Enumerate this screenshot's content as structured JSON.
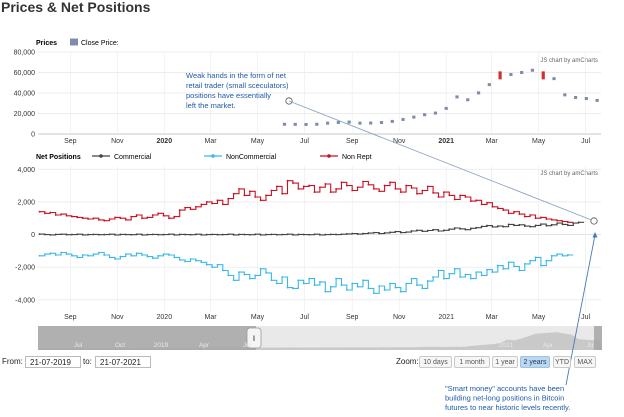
{
  "page": {
    "title": "Prices & Net Positions"
  },
  "chart_data": [
    {
      "type": "scatter",
      "panel": "Prices",
      "legend": [
        "Close Price:"
      ],
      "credit": "JS chart by amCharts",
      "y_ticks": [
        "80,000",
        "60,000",
        "40,000",
        "20,000",
        "0"
      ],
      "ylim": [
        0,
        80000
      ],
      "x_tick_labels": [
        "Sep",
        "Nov",
        "2020",
        "Mar",
        "May",
        "Jul",
        "Sep",
        "Nov",
        "2021",
        "Mar",
        "May",
        "Jul"
      ],
      "x_tick_dates": [
        "2019-09-01",
        "2019-11-01",
        "2020-01-01",
        "2020-03-01",
        "2020-05-01",
        "2020-07-01",
        "2020-09-01",
        "2020-11-01",
        "2021-01-01",
        "2021-03-01",
        "2021-05-01",
        "2021-07-01"
      ],
      "bold_ticks": [
        "2020",
        "2021"
      ],
      "x": [
        "2020-06-05",
        "2020-06-19",
        "2020-07-03",
        "2020-07-17",
        "2020-07-31",
        "2020-08-14",
        "2020-08-28",
        "2020-09-11",
        "2020-09-25",
        "2020-10-09",
        "2020-10-23",
        "2020-11-06",
        "2020-11-20",
        "2020-12-04",
        "2020-12-18",
        "2021-01-01",
        "2021-01-15",
        "2021-01-29",
        "2021-02-12",
        "2021-02-26",
        "2021-03-12",
        "2021-03-26",
        "2021-04-09",
        "2021-04-23",
        "2021-05-07",
        "2021-05-21",
        "2021-06-04",
        "2021-06-18",
        "2021-07-02",
        "2021-07-16"
      ],
      "close": [
        9500,
        9400,
        9300,
        9500,
        10600,
        11300,
        11600,
        10600,
        10700,
        11200,
        12300,
        14200,
        16500,
        18800,
        20400,
        25000,
        36200,
        33400,
        40100,
        48200,
        57200,
        58000,
        60000,
        62200,
        57200,
        54000,
        38200,
        35600,
        34600,
        32800
      ],
      "down_weeks": [
        "2021-03-12",
        "2021-05-07"
      ]
    },
    {
      "type": "line",
      "panel": "Net Positions",
      "credit": "JS chart by amCharts",
      "y_ticks": [
        "4,000",
        "2,000",
        "0",
        "-2,000",
        "-4,000"
      ],
      "ylim": [
        -4500,
        4200
      ],
      "x_tick_labels": [
        "Sep",
        "Nov",
        "2020",
        "Mar",
        "May",
        "Jul",
        "Sep",
        "Nov",
        "2021",
        "Mar",
        "May",
        "Jul"
      ],
      "x_tick_dates": [
        "2019-09-01",
        "2019-11-01",
        "2020-01-01",
        "2020-03-01",
        "2020-05-01",
        "2020-07-01",
        "2020-09-01",
        "2020-11-01",
        "2021-01-01",
        "2021-03-01",
        "2021-05-01",
        "2021-07-01"
      ],
      "x_start": "2019-07-23",
      "step_days": 7,
      "series": [
        {
          "name": "Commercial",
          "color": "#444444",
          "values": [
            30,
            0,
            -20,
            10,
            20,
            -10,
            0,
            20,
            -20,
            0,
            10,
            -10,
            0,
            20,
            -20,
            10,
            0,
            -10,
            20,
            -20,
            0,
            10,
            -10,
            0,
            20,
            -20,
            10,
            0,
            -10,
            20,
            -20,
            0,
            10,
            -10,
            0,
            20,
            -20,
            10,
            0,
            -10,
            20,
            -20,
            0,
            10,
            -10,
            0,
            20,
            -20,
            10,
            0,
            -10,
            20,
            -20,
            0,
            10,
            0,
            20,
            40,
            60,
            30,
            60,
            90,
            120,
            60,
            100,
            140,
            180,
            120,
            150,
            220,
            260,
            200,
            250,
            300,
            220,
            260,
            330,
            400,
            350,
            300,
            380,
            420,
            500,
            550,
            470,
            520,
            480,
            620,
            560,
            600,
            520,
            480,
            560,
            640,
            540,
            600,
            700,
            620,
            560,
            700,
            750
          ]
        },
        {
          "name": "NonCommercial",
          "color": "#3ab8e9",
          "values": [
            -1300,
            -1200,
            -1150,
            -1250,
            -1100,
            -1200,
            -1300,
            -1400,
            -1250,
            -1300,
            -1200,
            -1100,
            -1250,
            -1400,
            -1500,
            -1350,
            -1200,
            -1300,
            -1150,
            -1250,
            -1350,
            -1450,
            -1300,
            -1200,
            -1250,
            -1400,
            -1550,
            -1650,
            -1500,
            -1600,
            -1700,
            -1850,
            -2000,
            -1850,
            -2200,
            -2500,
            -2800,
            -2300,
            -2450,
            -2700,
            -2500,
            -2100,
            -2350,
            -2800,
            -3000,
            -2600,
            -3250,
            -3300,
            -2800,
            -3000,
            -2700,
            -3100,
            -2900,
            -3500,
            -3200,
            -2700,
            -3100,
            -3400,
            -3000,
            -3200,
            -2800,
            -3300,
            -3600,
            -3150,
            -3400,
            -3000,
            -3250,
            -3500,
            -3000,
            -2700,
            -3100,
            -3300,
            -2850,
            -2600,
            -2200,
            -2700,
            -2400,
            -2100,
            -2600,
            -2450,
            -2700,
            -2300,
            -2500,
            -2150,
            -2300,
            -1900,
            -2100,
            -1700,
            -1950,
            -2200,
            -1800,
            -1600,
            -1400,
            -1900,
            -1600,
            -1300,
            -1200,
            -1300,
            -1250
          ]
        },
        {
          "name": "Non Rept",
          "color": "#cc1122",
          "values": [
            1400,
            1300,
            1350,
            1200,
            1250,
            1150,
            1100,
            1050,
            1000,
            950,
            1000,
            900,
            850,
            950,
            1050,
            1000,
            900,
            1100,
            1200,
            1000,
            1050,
            1200,
            1300,
            1150,
            1000,
            1100,
            1500,
            1650,
            1550,
            1700,
            1850,
            2000,
            1900,
            2100,
            1850,
            2200,
            2500,
            2800,
            2400,
            2650,
            2300,
            2100,
            2400,
            2700,
            2950,
            2500,
            3300,
            3150,
            2800,
            2950,
            3000,
            2600,
            2900,
            3100,
            2600,
            2800,
            3200,
            3000,
            2700,
            2900,
            3250,
            3050,
            2800,
            2650,
            3000,
            3200,
            2800,
            2600,
            3000,
            2850,
            2500,
            2700,
            2950,
            2550,
            2300,
            2600,
            2400,
            2150,
            2400,
            2300,
            2050,
            2100,
            1850,
            1950,
            1700,
            1600,
            1500,
            1300,
            1400,
            1250,
            1100,
            1200,
            1000,
            1050,
            950,
            900,
            850,
            800,
            750
          ]
        }
      ]
    }
  ],
  "annotations": {
    "retail_note": [
      "Weak hands in the form of net",
      "retail trader (small sceculators)",
      "positions have essentially",
      "left the market."
    ],
    "smart_money_note": [
      "\"Smart money\" accounts have been",
      "building net-long positions in Bitcoin",
      "futures to near historic levels recently."
    ]
  },
  "navigator": {
    "labels": [
      "Jul",
      "Oct",
      "2019",
      "Apr",
      "Jul",
      "Oct",
      "2020",
      "Apr",
      "Jul",
      "Oct",
      "2021",
      "Apr",
      "Ju"
    ],
    "handle_left": "‖"
  },
  "range": {
    "from_label": "From:",
    "from_value": "21-07-2019",
    "to_label": "to:",
    "to_value": "21-07-2021",
    "zoom_label": "Zoom:",
    "zoom_buttons": [
      "10 days",
      "1 month",
      "1 year",
      "2 years",
      "YTD",
      "MAX"
    ],
    "active_zoom": "2 years"
  }
}
